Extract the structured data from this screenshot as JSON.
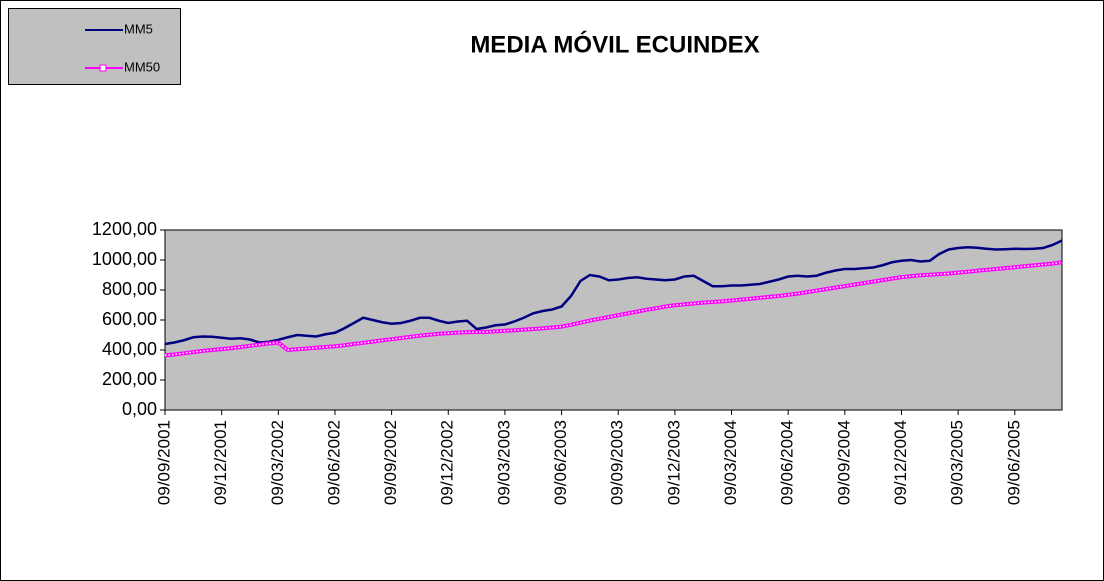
{
  "chart_data": {
    "type": "line",
    "title": "MEDIA MÓVIL ECUINDEX",
    "categories": [
      "09/09/2001",
      null,
      null,
      null,
      null,
      null,
      "09/12/2001",
      null,
      null,
      null,
      null,
      null,
      "09/03/2002",
      null,
      null,
      null,
      null,
      null,
      "09/06/2002",
      null,
      null,
      null,
      null,
      null,
      "09/09/2002",
      null,
      null,
      null,
      null,
      null,
      "09/12/2002",
      null,
      null,
      null,
      null,
      null,
      "09/03/2003",
      null,
      null,
      null,
      null,
      null,
      "09/06/2003",
      null,
      null,
      null,
      null,
      null,
      "09/09/2003",
      null,
      null,
      null,
      null,
      null,
      "09/12/2003",
      null,
      null,
      null,
      null,
      null,
      "09/03/2004",
      null,
      null,
      null,
      null,
      null,
      "09/06/2004",
      null,
      null,
      null,
      null,
      null,
      "09/09/2004",
      null,
      null,
      null,
      null,
      null,
      "09/12/2004",
      null,
      null,
      null,
      null,
      null,
      "09/03/2005",
      null,
      null,
      null,
      null,
      null,
      "09/06/2005",
      null,
      null,
      null,
      null,
      null
    ],
    "series": [
      {
        "name": "MM5",
        "color": "#000080",
        "values": [
          440,
          450,
          465,
          485,
          490,
          488,
          482,
          475,
          478,
          470,
          450,
          455,
          468,
          485,
          500,
          495,
          490,
          505,
          515,
          545,
          580,
          615,
          600,
          585,
          575,
          580,
          595,
          615,
          615,
          595,
          580,
          590,
          595,
          540,
          550,
          565,
          570,
          590,
          615,
          645,
          660,
          670,
          690,
          760,
          860,
          900,
          890,
          865,
          870,
          880,
          885,
          875,
          870,
          865,
          870,
          890,
          895,
          860,
          825,
          825,
          830,
          830,
          835,
          840,
          855,
          870,
          890,
          895,
          890,
          895,
          915,
          930,
          940,
          940,
          945,
          950,
          965,
          985,
          995,
          1000,
          990,
          995,
          1040,
          1070,
          1080,
          1085,
          1082,
          1075,
          1070,
          1072,
          1075,
          1073,
          1075,
          1080,
          1100,
          1130
        ]
      },
      {
        "name": "MM50",
        "color": "#ff00ff",
        "values": [
          365,
          370,
          378,
          386,
          394,
          400,
          406,
          412,
          420,
          428,
          436,
          443,
          450,
          400,
          405,
          410,
          415,
          420,
          425,
          432,
          440,
          448,
          456,
          464,
          472,
          480,
          488,
          496,
          502,
          508,
          512,
          516,
          518,
          520,
          520,
          524,
          528,
          532,
          536,
          540,
          544,
          550,
          556,
          568,
          582,
          596,
          608,
          620,
          632,
          644,
          656,
          668,
          678,
          690,
          698,
          704,
          710,
          716,
          720,
          724,
          730,
          736,
          742,
          748,
          754,
          760,
          768,
          776,
          786,
          796,
          806,
          816,
          826,
          836,
          846,
          856,
          866,
          876,
          886,
          892,
          898,
          902,
          906,
          910,
          916,
          922,
          928,
          934,
          940,
          946,
          952,
          958,
          964,
          970,
          976,
          985
        ]
      }
    ],
    "ylim": [
      0,
      1200
    ],
    "yticks": [
      {
        "value": 0,
        "label": "0,00"
      },
      {
        "value": 200,
        "label": "200,00"
      },
      {
        "value": 400,
        "label": "400,00"
      },
      {
        "value": 600,
        "label": "600,00"
      },
      {
        "value": 800,
        "label": "800,00"
      },
      {
        "value": 1000,
        "label": "1000,00"
      },
      {
        "value": 1200,
        "label": "1200,00"
      }
    ],
    "grid": false,
    "legend": "top-left",
    "background": "#c0c0c0"
  }
}
